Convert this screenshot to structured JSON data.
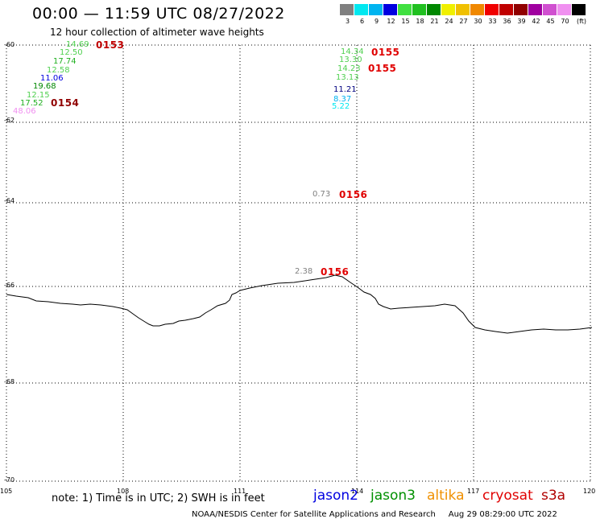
{
  "header": {
    "title": "00:00 — 11:59 UTC 08/27/2022",
    "subtitle": "12 hour collection of altimeter wave heights"
  },
  "scale": {
    "unit": "(ft)",
    "colors": [
      "#808080",
      "#00e8f0",
      "#00b4f0",
      "#0000e0",
      "#40e040",
      "#20c020",
      "#008800",
      "#f0f000",
      "#f0c000",
      "#f08800",
      "#f00000",
      "#c00000",
      "#900000",
      "#a000a0",
      "#d050d0",
      "#f090f0",
      "#000000"
    ],
    "ticks": [
      "3",
      "6",
      "9",
      "12",
      "15",
      "18",
      "21",
      "24",
      "27",
      "30",
      "33",
      "36",
      "39",
      "42",
      "45",
      "70"
    ]
  },
  "map": {
    "lat_labels": [
      "-60",
      "-62",
      "-64",
      "-66",
      "-68",
      "-70"
    ],
    "lon_labels": [
      "105",
      "108",
      "111",
      "114",
      "117",
      "120"
    ],
    "wave_heights": [
      {
        "text": "14.69",
        "color": "#50d050"
      },
      {
        "text": "12.50",
        "color": "#50d050"
      },
      {
        "text": "17.74",
        "color": "#20b020"
      },
      {
        "text": "12.58",
        "color": "#50d050"
      },
      {
        "text": "11.06",
        "color": "#0000e0"
      },
      {
        "text": "19.68",
        "color": "#008800"
      },
      {
        "text": "12.15",
        "color": "#50d050"
      },
      {
        "text": "17.52",
        "color": "#20b020"
      },
      {
        "text": "48.06",
        "color": "#f090f0"
      },
      {
        "text": "14.34",
        "color": "#50d050"
      },
      {
        "text": "13.30",
        "color": "#50d050"
      },
      {
        "text": "14.23",
        "color": "#50d050"
      },
      {
        "text": "13.13",
        "color": "#50d050"
      },
      {
        "text": "11.21",
        "color": "#000080"
      },
      {
        "text": "8.37",
        "color": "#00b4f0"
      },
      {
        "text": "5.22",
        "color": "#00e8f0"
      },
      {
        "text": "0.73",
        "color": "#808080"
      },
      {
        "text": "2.38",
        "color": "#808080"
      }
    ],
    "pass_labels": [
      "0153",
      "0154",
      "0155",
      "0155",
      "0156",
      "0156"
    ]
  },
  "footer": {
    "note": "note: 1) Time is in UTC; 2) SWH is in feet",
    "satellites": [
      {
        "name": "jason2",
        "color": "#0000e0"
      },
      {
        "name": "jason3",
        "color": "#009000"
      },
      {
        "name": "altika",
        "color": "#f09000"
      },
      {
        "name": "cryosat",
        "color": "#e00000"
      },
      {
        "name": "s3a",
        "color": "#b00000"
      }
    ],
    "credit": "NOAA/NESDIS Center for Satellite Applications and Research     Aug 29 08:29:00 UTC 2022"
  }
}
